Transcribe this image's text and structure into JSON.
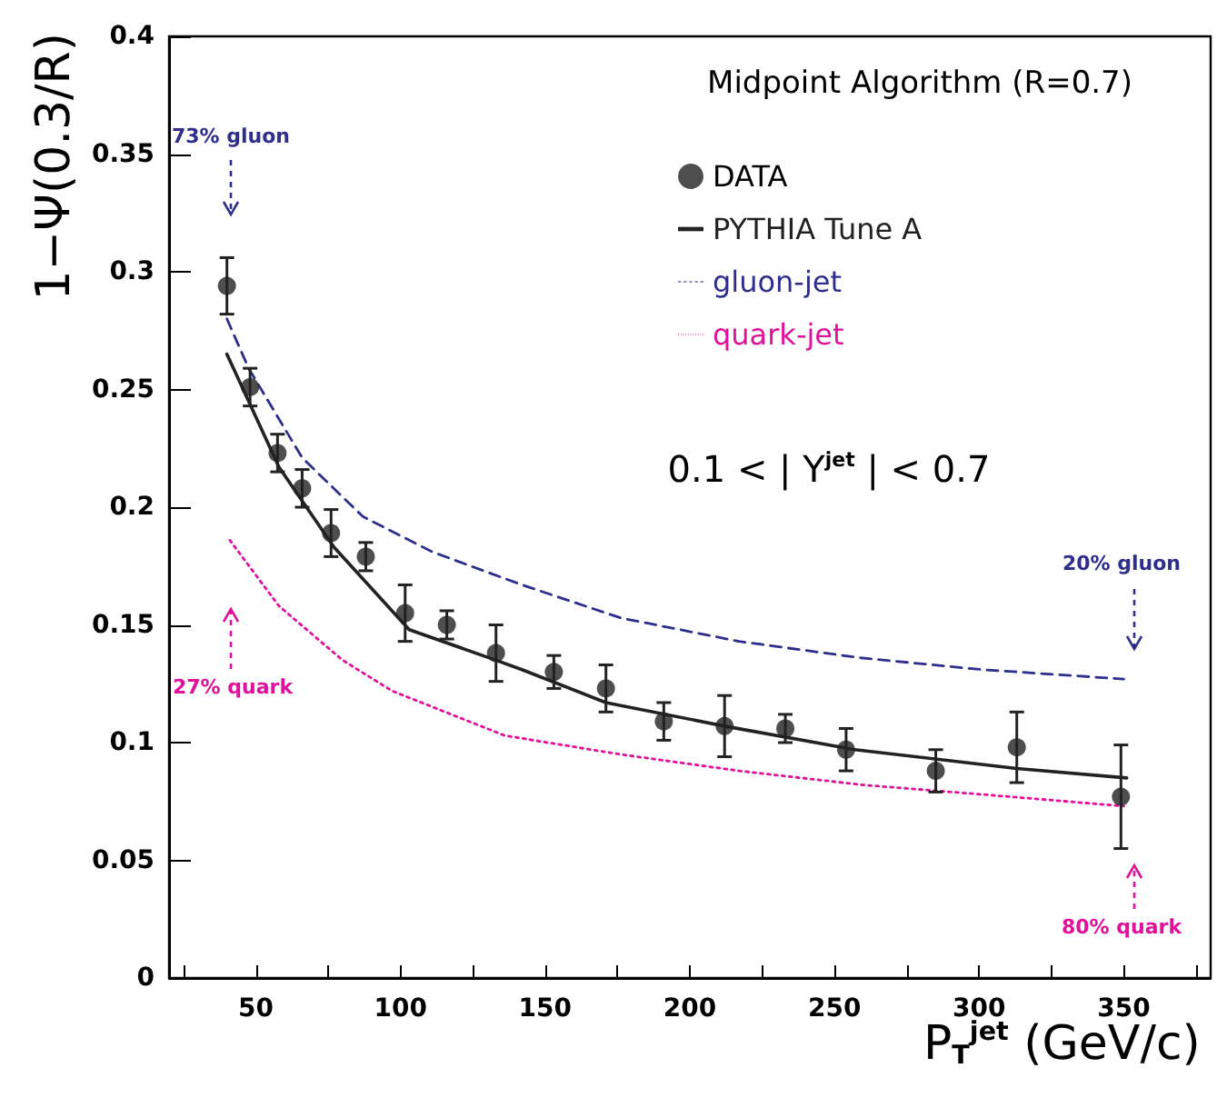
{
  "chart_data": {
    "type": "scatter",
    "xlabel": "P$_{T}$$^{jet}$ (GeV/c)",
    "ylabel": "1−Ψ(0.3/R)",
    "xlim": [
      20,
      380
    ],
    "xticks": [
      {
        "value": 25,
        "label": null
      },
      50,
      {
        "value": 75,
        "label": null
      },
      100,
      {
        "value": 125,
        "label": null
      },
      150,
      {
        "value": 175,
        "label": null
      },
      200,
      {
        "value": 225,
        "label": null
      },
      250,
      {
        "value": 275,
        "label": null
      },
      300,
      {
        "value": 325,
        "label": null
      },
      350,
      {
        "value": 375,
        "label": null
      }
    ],
    "ylim": [
      0,
      0.4
    ],
    "yticks": [
      0,
      0.05,
      0.1,
      0.15,
      0.2,
      0.25,
      0.3,
      0.35,
      0.4
    ],
    "grid": false,
    "legend": "top right",
    "annotations": [
      "Midpoint Algorithm (R=0.7)",
      "0.1 < | Y$^{jet}$ | < 0.7",
      "73% gluon",
      "27% quark",
      "20% gluon",
      "80% quark"
    ],
    "series": [
      {
        "name": "DATA",
        "marker": "circle",
        "color": "#222222",
        "x": [
          40,
          48,
          57.5,
          66,
          76,
          88,
          101.6,
          116,
          133,
          153,
          171,
          191,
          212,
          233,
          254,
          285,
          313,
          349
        ],
        "values": [
          0.294,
          0.251,
          0.223,
          0.208,
          0.189,
          0.179,
          0.155,
          0.15,
          0.138,
          0.13,
          0.123,
          0.109,
          0.107,
          0.106,
          0.097,
          0.088,
          0.098,
          0.077
        ],
        "errors": [
          0.012,
          0.008,
          0.008,
          0.008,
          0.01,
          0.006,
          0.012,
          0.006,
          0.012,
          0.007,
          0.01,
          0.008,
          0.013,
          0.006,
          0.009,
          0.009,
          0.015,
          0.022
        ]
      },
      {
        "name": "PYTHIA Tune A",
        "type": "line",
        "line_style": "solid",
        "marker": "none",
        "color": "#222222",
        "x": [
          40,
          58,
          77,
          103,
          133,
          142,
          171,
          212,
          257,
          313,
          351
        ],
        "values": [
          0.265,
          0.217,
          0.183,
          0.148,
          0.135,
          0.131,
          0.117,
          0.107,
          0.097,
          0.089,
          0.085
        ]
      },
      {
        "name": "gluon-jet",
        "type": "line",
        "line_style": "dashed",
        "marker": "none",
        "color": "#2e2e8c",
        "x": [
          40,
          47.5,
          66,
          87,
          111,
          142,
          176,
          217,
          259,
          301,
          350
        ],
        "values": [
          0.28,
          0.259,
          0.221,
          0.196,
          0.181,
          0.167,
          0.153,
          0.143,
          0.136,
          0.131,
          0.127
        ]
      },
      {
        "name": "quark-jet",
        "type": "line",
        "line_style": "dotted",
        "marker": "none",
        "color": "#e0119a",
        "x": [
          41,
          58,
          80,
          97,
          136,
          176,
          217,
          260,
          301,
          350
        ],
        "values": [
          0.186,
          0.158,
          0.135,
          0.122,
          0.103,
          0.095,
          0.088,
          0.082,
          0.078,
          0.073
        ]
      }
    ]
  }
}
